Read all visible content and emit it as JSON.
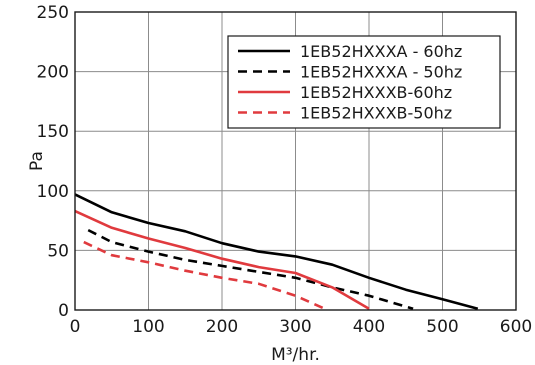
{
  "chart_data": {
    "type": "line",
    "title": "",
    "xlabel": "M³/hr.",
    "ylabel": "Pa",
    "xlim": [
      0,
      600
    ],
    "ylim": [
      0,
      250
    ],
    "xticks": [
      0,
      100,
      200,
      300,
      400,
      500,
      600
    ],
    "yticks": [
      0,
      50,
      100,
      150,
      200,
      250
    ],
    "grid": true,
    "legend_position": "top-right",
    "series": [
      {
        "name": "1EB52HXXXA - 60hz",
        "color": "#000000",
        "style": "solid",
        "x": [
          0,
          50,
          100,
          150,
          200,
          250,
          300,
          350,
          400,
          450,
          500,
          548
        ],
        "y": [
          97,
          82,
          73,
          66,
          56,
          49,
          45,
          38,
          27,
          17,
          9,
          1
        ]
      },
      {
        "name": "1EB52HXXXA - 50hz",
        "color": "#000000",
        "style": "dashed",
        "x": [
          18,
          50,
          100,
          150,
          200,
          250,
          300,
          350,
          400,
          460
        ],
        "y": [
          67,
          57,
          49,
          42,
          37,
          32,
          27,
          19,
          12,
          1
        ]
      },
      {
        "name": "1EB52HXXXB-60hz",
        "color": "#e03a3e",
        "style": "solid",
        "x": [
          0,
          50,
          100,
          150,
          200,
          250,
          300,
          350,
          400
        ],
        "y": [
          83,
          69,
          60,
          52,
          43,
          36,
          31,
          19,
          1
        ]
      },
      {
        "name": "1EB52HXXXB-50hz",
        "color": "#e03a3e",
        "style": "dashed",
        "x": [
          12,
          50,
          100,
          150,
          200,
          250,
          300,
          340
        ],
        "y": [
          57,
          46,
          40,
          33,
          27,
          22,
          12,
          1
        ]
      }
    ]
  }
}
